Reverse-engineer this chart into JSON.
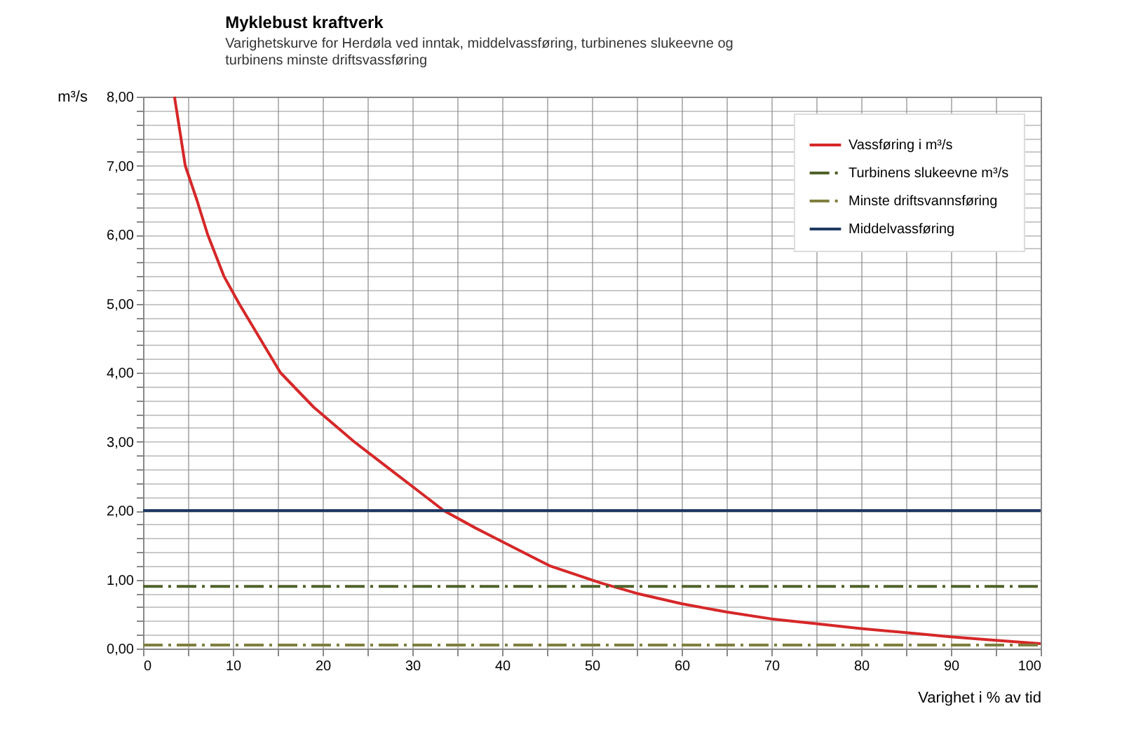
{
  "chart_data": {
    "type": "line",
    "title": "Myklebust kraftverk",
    "subtitle": "Varighetskurve for Herdøla ved inntak, middelvassføring, turbinenes slukeevne og\nturbinens minste driftsvassføring",
    "xlabel": "Varighet i % av tid",
    "ylabel": "m³/s",
    "xlim": [
      0,
      100
    ],
    "ylim": [
      0,
      8
    ],
    "xticks": [
      0,
      {
        "value": 5,
        "label": null
      },
      10,
      {
        "value": 15,
        "label": null
      },
      20,
      {
        "value": 25,
        "label": null
      },
      30,
      {
        "value": 35,
        "label": null
      },
      40,
      {
        "value": 45,
        "label": null
      },
      50,
      {
        "value": 55,
        "label": null
      },
      60,
      {
        "value": 65,
        "label": null
      },
      70,
      {
        "value": 75,
        "label": null
      },
      80,
      {
        "value": 85,
        "label": null
      },
      90,
      {
        "value": 95,
        "label": null
      },
      100
    ],
    "yticks": [
      {
        "value": 0,
        "label": "0,00"
      },
      {
        "value": 0.2,
        "label": null
      },
      {
        "value": 0.4,
        "label": null
      },
      {
        "value": 0.6,
        "label": null
      },
      {
        "value": 0.8,
        "label": null
      },
      {
        "value": 1,
        "label": "1,00"
      },
      {
        "value": 1.2,
        "label": null
      },
      {
        "value": 1.4,
        "label": null
      },
      {
        "value": 1.6,
        "label": null
      },
      {
        "value": 1.8,
        "label": null
      },
      {
        "value": 2,
        "label": "2,00"
      },
      {
        "value": 2.2,
        "label": null
      },
      {
        "value": 2.4,
        "label": null
      },
      {
        "value": 2.6,
        "label": null
      },
      {
        "value": 2.8,
        "label": null
      },
      {
        "value": 3,
        "label": "3,00"
      },
      {
        "value": 3.2,
        "label": null
      },
      {
        "value": 3.4,
        "label": null
      },
      {
        "value": 3.6,
        "label": null
      },
      {
        "value": 3.8,
        "label": null
      },
      {
        "value": 4,
        "label": "4,00"
      },
      {
        "value": 4.2,
        "label": null
      },
      {
        "value": 4.4,
        "label": null
      },
      {
        "value": 4.6,
        "label": null
      },
      {
        "value": 4.8,
        "label": null
      },
      {
        "value": 5,
        "label": "5,00"
      },
      {
        "value": 5.2,
        "label": null
      },
      {
        "value": 5.4,
        "label": null
      },
      {
        "value": 5.6,
        "label": null
      },
      {
        "value": 5.8,
        "label": null
      },
      {
        "value": 6,
        "label": "6,00"
      },
      {
        "value": 6.2,
        "label": null
      },
      {
        "value": 6.4,
        "label": null
      },
      {
        "value": 6.6,
        "label": null
      },
      {
        "value": 6.8,
        "label": null
      },
      {
        "value": 7,
        "label": "7,00"
      },
      {
        "value": 7.2,
        "label": null
      },
      {
        "value": 7.4,
        "label": null
      },
      {
        "value": 7.6,
        "label": null
      },
      {
        "value": 7.8,
        "label": null
      },
      {
        "value": 8,
        "label": "8,00"
      }
    ],
    "grid": true,
    "legend": "top right",
    "marker": "none",
    "series": [
      {
        "name": "Vassføring i m³/s",
        "color": "#d62728",
        "line_style": "solid",
        "x": [
          3.5,
          4.7,
          6,
          7.2,
          9,
          10.7,
          13,
          15.3,
          19,
          23.5,
          28,
          30,
          33.5,
          37,
          40,
          45.3,
          51,
          55,
          60,
          65,
          70,
          75,
          80,
          85,
          90,
          95,
          100
        ],
        "values": [
          8.0,
          7.0,
          6.5,
          6.0,
          5.4,
          5.0,
          4.5,
          4.0,
          3.5,
          3.0,
          2.55,
          2.35,
          2.0,
          1.75,
          1.55,
          1.2,
          0.95,
          0.8,
          0.65,
          0.53,
          0.43,
          0.36,
          0.29,
          0.23,
          0.17,
          0.12,
          0.07
        ]
      },
      {
        "name": "Turbinens slukeevne m³/s",
        "color": "#4f6228",
        "line_style": "dashed",
        "x": [
          0,
          100
        ],
        "values": [
          0.9,
          0.9
        ]
      },
      {
        "name": "Minste driftsvannsføring",
        "color": "#7f7f3f",
        "line_style": "dashed",
        "x": [
          0,
          100
        ],
        "values": [
          0.05,
          0.05
        ]
      },
      {
        "name": "Middelvassføring",
        "color": "#1f3864",
        "line_style": "solid",
        "x": [
          0,
          100
        ],
        "values": [
          2.0,
          2.0
        ]
      }
    ]
  }
}
